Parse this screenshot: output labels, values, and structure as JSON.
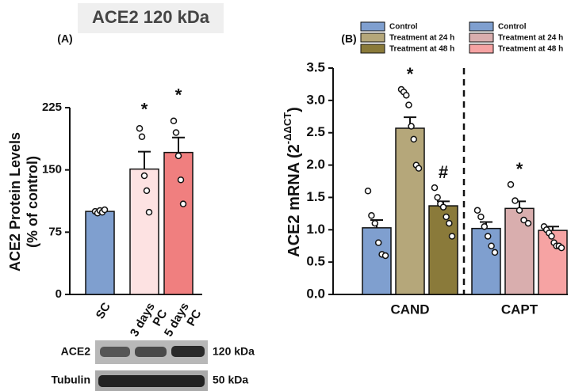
{
  "chart_data": [
    {
      "type": "bar",
      "title": "ACE2 120 kDa",
      "panel_label": "(A)",
      "y_label": [
        "ACE2 Protein Levels",
        "(% of control)"
      ],
      "categories": [
        [
          "SC"
        ],
        [
          "3 days",
          "PC"
        ],
        [
          "5 days",
          "PC"
        ]
      ],
      "values": [
        100,
        151,
        171
      ],
      "errors": [
        2,
        21,
        18
      ],
      "points": [
        [
          100,
          98,
          101,
          99,
          102
        ],
        [
          200,
          190,
          143,
          125,
          99
        ],
        [
          209,
          195,
          167,
          138,
          109
        ]
      ],
      "annotations": [
        null,
        "*",
        "*"
      ],
      "colors": [
        "#7f9fcf",
        "#fde2e2",
        "#f07f7f"
      ],
      "ylim": [
        0,
        225
      ],
      "yticks": [
        0,
        75,
        150,
        225
      ]
    },
    {
      "type": "grouped_bar",
      "panel_label": "(B)",
      "y_label": "ACE2 mRNA (2",
      "y_label_sup": "-ΔΔCT",
      "y_label_end": ")",
      "ylim": [
        0,
        3.5
      ],
      "yticks": [
        {
          "value": 0,
          "label": "0.0"
        },
        0.5,
        {
          "value": 1,
          "label": "1.0"
        },
        1.5,
        {
          "value": 2,
          "label": "2.0"
        },
        2.5,
        {
          "value": 3,
          "label": "3.0"
        },
        3.5
      ],
      "groups": [
        {
          "name": "CAND",
          "series": [
            {
              "name": "Control",
              "color": "#7f9fcf",
              "value": 1.03,
              "error": 0.12,
              "points": [
                1.6,
                1.22,
                1.1,
                0.8,
                0.62,
                0.6
              ],
              "annotation": null
            },
            {
              "name": "Treatment at 24 h",
              "color": "#b5a77a",
              "value": 2.57,
              "error": 0.17,
              "points": [
                3.17,
                3.13,
                3.08,
                2.93,
                2.6,
                2.4,
                2.0,
                1.95
              ],
              "annotation": "*"
            },
            {
              "name": "Treatment at 48 h",
              "color": "#8a7a3a",
              "value": 1.37,
              "error": 0.07,
              "points": [
                1.65,
                1.5,
                1.4,
                1.35,
                1.2,
                1.1,
                0.9
              ],
              "annotation": "#"
            }
          ]
        },
        {
          "name": "CAPT",
          "series": [
            {
              "name": "Control",
              "color": "#7f9fcf",
              "value": 1.02,
              "error": 0.1,
              "points": [
                1.3,
                1.2,
                1.05,
                0.9,
                0.75,
                0.65
              ],
              "annotation": null
            },
            {
              "name": "Treatment at 24 h",
              "color": "#d9aeae",
              "value": 1.33,
              "error": 0.11,
              "points": [
                1.7,
                1.45,
                1.3,
                1.15,
                1.1
              ],
              "annotation": "*"
            },
            {
              "name": "Treatment at 48 h",
              "color": "#f6a3a3",
              "value": 0.99,
              "error": 0.06,
              "points": [
                1.05,
                1.0,
                0.95,
                0.9,
                0.8,
                0.75,
                0.75,
                0.72
              ],
              "annotation": null
            }
          ]
        }
      ]
    }
  ],
  "blot": {
    "rows": [
      {
        "label": "ACE2",
        "size": "120 kDa"
      },
      {
        "label": "Tubulin",
        "size": "50 kDa"
      }
    ]
  }
}
